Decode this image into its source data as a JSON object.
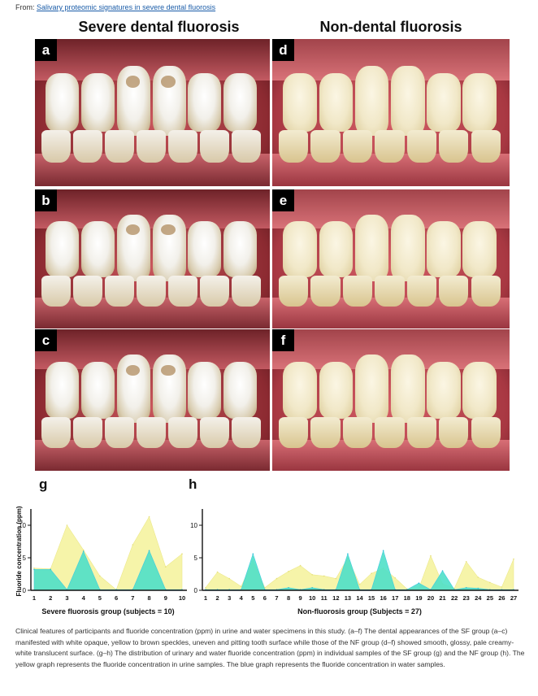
{
  "header": {
    "from_label": "From:",
    "link_text": "Salivary proteomic signatures in severe dental fluorosis"
  },
  "columns": {
    "left_title": "Severe dental fluorosis",
    "right_title": "Non-dental fluorosis"
  },
  "photos": [
    {
      "label": "a"
    },
    {
      "label": "b"
    },
    {
      "label": "c"
    },
    {
      "label": "d"
    },
    {
      "label": "e"
    },
    {
      "label": "f"
    }
  ],
  "chart_data": [
    {
      "type": "area",
      "panel": "g",
      "xlabel": "Severe fluorosis group (subjects = 10)",
      "ylabel": "Fluoride concentration (ppm)",
      "ylim": [
        0,
        12
      ],
      "yticks": [
        "0",
        "5",
        "10"
      ],
      "x": [
        "1",
        "2",
        "3",
        "4",
        "5",
        "6",
        "7",
        "8",
        "9",
        "10"
      ],
      "series": [
        {
          "name": "urine",
          "color": "#f5f29a",
          "values": [
            3.4,
            3.3,
            10.0,
            6.2,
            2.2,
            0.1,
            7.0,
            11.3,
            3.6,
            5.6
          ]
        },
        {
          "name": "water",
          "color": "#4fe0c8",
          "values": [
            3.2,
            3.2,
            0.1,
            6.0,
            0.1,
            0.1,
            0.1,
            6.1,
            0.1,
            0.1
          ]
        }
      ]
    },
    {
      "type": "area",
      "panel": "h",
      "xlabel": "Non-fluorosis group (Subjects = 27)",
      "ylabel": "",
      "ylim": [
        0,
        12
      ],
      "yticks": [
        "0",
        "5",
        "10"
      ],
      "x": [
        "1",
        "2",
        "3",
        "4",
        "5",
        "6",
        "7",
        "8",
        "9",
        "10",
        "11",
        "12",
        "13",
        "14",
        "15",
        "16",
        "17",
        "18",
        "19",
        "20",
        "21",
        "22",
        "23",
        "24",
        "25",
        "26",
        "27"
      ],
      "series": [
        {
          "name": "urine",
          "color": "#f5f29a",
          "values": [
            0.4,
            2.8,
            1.8,
            0.6,
            4.5,
            0.4,
            1.8,
            2.9,
            3.8,
            2.4,
            2.2,
            1.8,
            5.0,
            0.9,
            2.6,
            3.4,
            1.9,
            0.2,
            0.3,
            5.3,
            1.0,
            0.3,
            4.4,
            2.0,
            1.2,
            0.5,
            4.8
          ]
        },
        {
          "name": "water",
          "color": "#4fe0c8",
          "values": [
            0.1,
            0.1,
            0.1,
            0.1,
            5.6,
            0.1,
            0.1,
            0.4,
            0.1,
            0.4,
            0.1,
            0.1,
            5.6,
            0.1,
            0.1,
            6.1,
            0.1,
            0.1,
            1.1,
            0.1,
            3.0,
            0.1,
            0.4,
            0.3,
            0.1,
            0.1,
            0.1
          ]
        }
      ]
    }
  ],
  "caption": {
    "text": "Clinical features of participants and fluoride concentration (ppm) in urine and water specimens in this study. (a–f) The dental appearances of the SF group (a–c) manifested with white opaque, yellow to brown speckles, uneven and pitting tooth surface while those of the NF group (d–f) showed smooth, glossy, pale creamy-white translucent surface. (g–h) The distribution of urinary and water fluoride concentration (ppm) in individual samples of the SF group (g) and the NF group (h). The yellow graph represents the fluoride concentration in urine samples. The blue graph represents the fluoride concentration in water samples."
  },
  "colors": {
    "link": "#1a5ca8",
    "gum": "#c64a55",
    "urine_fill": "#f5f29a",
    "water_fill": "#4fe0c8"
  }
}
